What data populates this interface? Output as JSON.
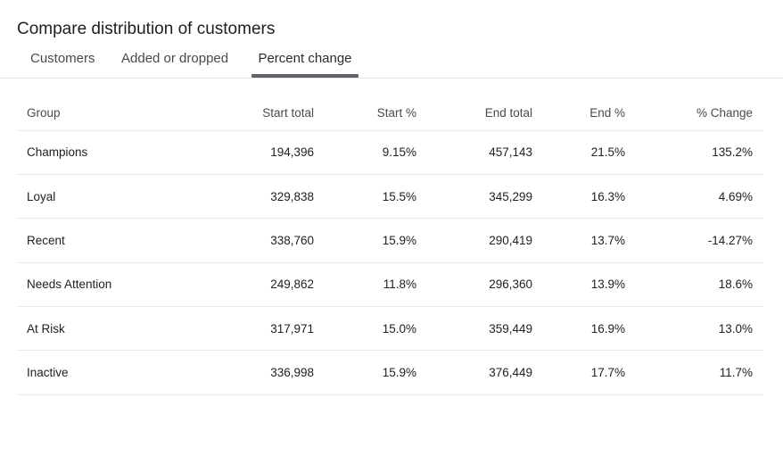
{
  "title": "Compare distribution of customers",
  "tabs": [
    {
      "label": "Customers",
      "active": false
    },
    {
      "label": "Added or dropped",
      "active": false
    },
    {
      "label": "Percent change",
      "active": true
    }
  ],
  "table": {
    "headers": [
      "Group",
      "Start total",
      "Start %",
      "End total",
      "End %",
      "% Change"
    ],
    "rows": [
      [
        "Champions",
        "194,396",
        "9.15%",
        "457,143",
        "21.5%",
        "135.2%"
      ],
      [
        "Loyal",
        "329,838",
        "15.5%",
        "345,299",
        "16.3%",
        "4.69%"
      ],
      [
        "Recent",
        "338,760",
        "15.9%",
        "290,419",
        "13.7%",
        "-14.27%"
      ],
      [
        "Needs Attention",
        "249,862",
        "11.8%",
        "296,360",
        "13.9%",
        "18.6%"
      ],
      [
        "At Risk",
        "317,971",
        "15.0%",
        "359,449",
        "16.9%",
        "13.0%"
      ],
      [
        "Inactive",
        "336,998",
        "15.9%",
        "376,449",
        "17.7%",
        "11.7%"
      ]
    ]
  }
}
